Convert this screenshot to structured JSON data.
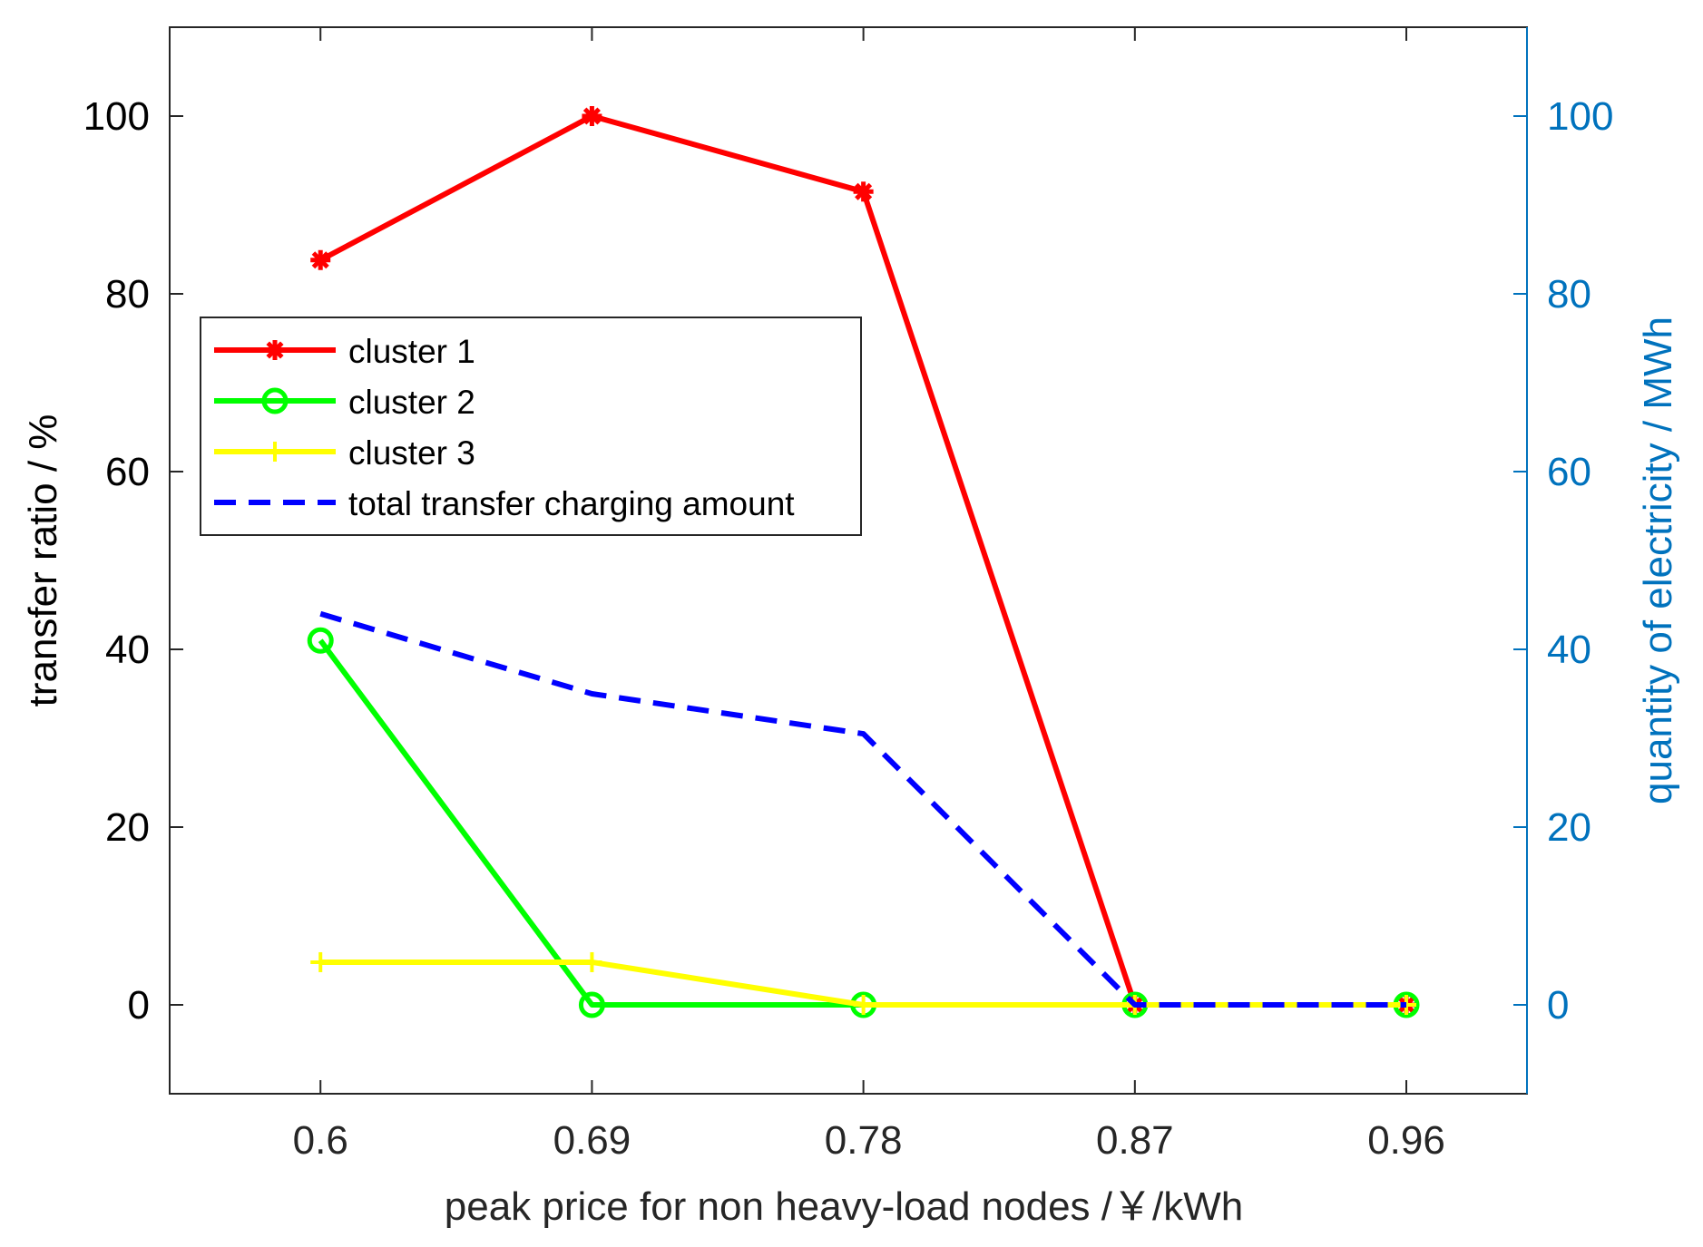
{
  "chart_data": {
    "type": "line",
    "xlabel": "peak price for non heavy-load nodes /￥/kWh",
    "ylabel_left": "transfer ratio / %",
    "ylabel_right": "quantity of electricity / MWh",
    "x_ticks": [
      "0.6",
      "0.69",
      "0.78",
      "0.87",
      "0.96"
    ],
    "x": [
      0.6,
      0.69,
      0.78,
      0.87,
      0.96
    ],
    "xlim": [
      0.55,
      1.0
    ],
    "ylim_left": [
      -10,
      110
    ],
    "ylim_right": [
      -10,
      110
    ],
    "y_ticks_left": [
      "0",
      "20",
      "40",
      "60",
      "80",
      "100"
    ],
    "y_ticks_right": [
      "0",
      "20",
      "40",
      "60",
      "80",
      "100"
    ],
    "legend_position": "left",
    "series": [
      {
        "name": "cluster 1",
        "axis": "left",
        "color": "#ff0000",
        "marker": "asterisk",
        "style": "solid",
        "values": [
          83.8,
          100,
          91.5,
          0,
          0
        ]
      },
      {
        "name": "cluster 2",
        "axis": "left",
        "color": "#00ff00",
        "marker": "circle",
        "style": "solid",
        "values": [
          41,
          0,
          0,
          0,
          0
        ]
      },
      {
        "name": "cluster 3",
        "axis": "left",
        "color": "#ffff00",
        "marker": "plus",
        "style": "solid",
        "values": [
          4.8,
          4.8,
          0,
          0,
          0
        ]
      },
      {
        "name": "total transfer charging amount",
        "axis": "right",
        "color": "#0000ff",
        "marker": "none",
        "style": "dashed",
        "values": [
          44,
          35,
          30.5,
          0,
          0
        ]
      }
    ],
    "colors": {
      "left_axis": "#000000",
      "right_axis": "#0072bd"
    }
  }
}
